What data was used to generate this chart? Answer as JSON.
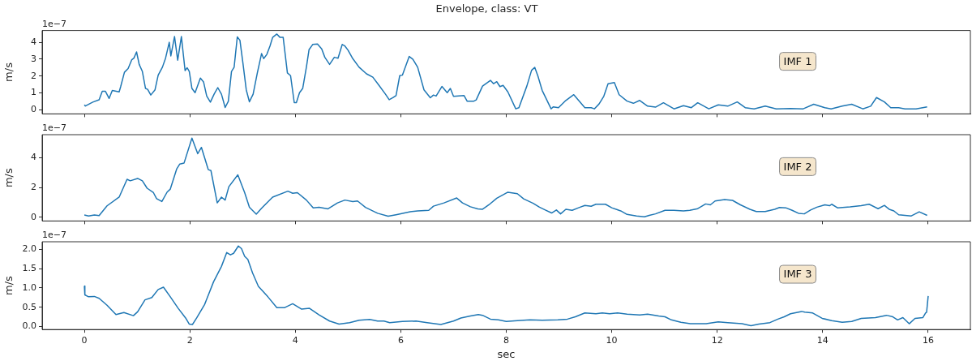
{
  "chart_data": [
    {
      "type": "line",
      "title": "Envelope, class: VT",
      "ylabel": "m/s",
      "annotations": [
        "1e−7",
        "IMF 1"
      ],
      "color": "#1f77b4",
      "tick_labels": "y",
      "xlim": [
        -0.8,
        16.8
      ],
      "xticks": [
        0,
        2,
        4,
        6,
        8,
        10,
        12,
        14,
        16
      ],
      "ylim": [
        -0.25,
        4.7
      ],
      "yticks": [
        0,
        1,
        2,
        3,
        4
      ],
      "x": [
        0,
        0.02,
        0.16,
        0.28,
        0.34,
        0.4,
        0.47,
        0.53,
        0.66,
        0.69,
        0.76,
        0.83,
        0.9,
        0.94,
        0.99,
        1.04,
        1.1,
        1.16,
        1.2,
        1.26,
        1.34,
        1.4,
        1.48,
        1.54,
        1.61,
        1.64,
        1.71,
        1.77,
        1.84,
        1.91,
        1.95,
        1.99,
        2.04,
        2.1,
        2.2,
        2.26,
        2.32,
        2.39,
        2.46,
        2.53,
        2.6,
        2.67,
        2.73,
        2.79,
        2.84,
        2.9,
        2.95,
        3.01,
        3.07,
        3.13,
        3.2,
        3.28,
        3.36,
        3.4,
        3.46,
        3.52,
        3.57,
        3.65,
        3.71,
        3.77,
        3.85,
        3.91,
        3.98,
        4.02,
        4.08,
        4.14,
        4.21,
        4.26,
        4.33,
        4.42,
        4.5,
        4.56,
        4.65,
        4.74,
        4.81,
        4.89,
        4.94,
        5,
        5.09,
        5.21,
        5.35,
        5.47,
        5.59,
        5.71,
        5.78,
        5.85,
        5.91,
        5.98,
        6.03,
        6.16,
        6.23,
        6.32,
        6.44,
        6.56,
        6.62,
        6.67,
        6.78,
        6.88,
        6.94,
        7,
        7.2,
        7.26,
        7.38,
        7.43,
        7.55,
        7.7,
        7.76,
        7.82,
        7.88,
        7.94,
        8.03,
        8.18,
        8.24,
        8.39,
        8.48,
        8.54,
        8.6,
        8.68,
        8.85,
        8.89,
        8.99,
        9.13,
        9.28,
        9.49,
        9.61,
        9.67,
        9.76,
        9.85,
        9.93,
        10.05,
        10.14,
        10.29,
        10.41,
        10.53,
        10.68,
        10.83,
        10.98,
        11.18,
        11.36,
        11.51,
        11.63,
        11.84,
        12.02,
        12.2,
        12.38,
        12.53,
        12.7,
        12.91,
        13.12,
        13.39,
        13.63,
        13.83,
        14.04,
        14.16,
        14.37,
        14.55,
        14.76,
        14.91,
        15.02,
        15.17,
        15.29,
        15.44,
        15.56,
        15.77,
        15.98
      ],
      "values": [
        0.29,
        0.22,
        0.45,
        0.59,
        1.09,
        1.09,
        0.67,
        1.14,
        1.06,
        1.38,
        2.22,
        2.44,
        2.97,
        3.06,
        3.43,
        2.69,
        2.27,
        1.26,
        1.21,
        0.87,
        1.18,
        2.05,
        2.52,
        3.06,
        4.0,
        3.19,
        4.34,
        2.94,
        4.34,
        2.32,
        2.49,
        2.27,
        1.26,
        1.01,
        1.88,
        1.65,
        0.81,
        0.45,
        0.92,
        1.31,
        0.92,
        0.13,
        0.5,
        2.27,
        2.52,
        4.32,
        4.12,
        2.69,
        1.18,
        0.47,
        0.92,
        2.18,
        3.33,
        3.03,
        3.28,
        3.78,
        4.29,
        4.49,
        4.29,
        4.29,
        2.18,
        2.02,
        0.42,
        0.42,
        1.01,
        1.26,
        2.52,
        3.56,
        3.87,
        3.9,
        3.61,
        3.11,
        2.69,
        3.11,
        3.06,
        3.87,
        3.78,
        3.53,
        3.03,
        2.52,
        2.13,
        1.93,
        1.43,
        0.92,
        0.59,
        0.71,
        0.84,
        2.02,
        2.05,
        3.16,
        2.99,
        2.52,
        1.18,
        0.71,
        0.87,
        0.81,
        1.38,
        1.01,
        1.26,
        0.79,
        0.84,
        0.5,
        0.5,
        0.58,
        1.4,
        1.74,
        1.54,
        1.66,
        1.37,
        1.44,
        1.06,
        0.05,
        0.12,
        1.4,
        2.34,
        2.51,
        2.0,
        1.15,
        0.05,
        0.17,
        0.12,
        0.55,
        0.89,
        0.12,
        0.12,
        0.05,
        0.34,
        0.8,
        1.54,
        1.61,
        0.89,
        0.51,
        0.38,
        0.55,
        0.21,
        0.15,
        0.41,
        0.05,
        0.24,
        0.12,
        0.41,
        0.05,
        0.29,
        0.21,
        0.46,
        0.12,
        0.05,
        0.21,
        0.05,
        0.07,
        0.05,
        0.32,
        0.12,
        0.05,
        0.21,
        0.32,
        0.05,
        0.21,
        0.72,
        0.46,
        0.12,
        0.12,
        0.05,
        0.05,
        0.17
      ]
    },
    {
      "type": "line",
      "ylabel": "m/s",
      "annotations": [
        "1e−7",
        "IMF 2"
      ],
      "color": "#1f77b4",
      "tick_labels": "y",
      "xlim": [
        -0.8,
        16.8
      ],
      "xticks": [
        0,
        2,
        4,
        6,
        8,
        10,
        12,
        14,
        16
      ],
      "ylim": [
        -0.26,
        5.56
      ],
      "yticks": [
        0,
        2,
        4
      ],
      "x": [
        0,
        0.08,
        0.19,
        0.28,
        0.43,
        0.66,
        0.81,
        0.87,
        1.01,
        1.1,
        1.19,
        1.31,
        1.37,
        1.47,
        1.57,
        1.63,
        1.75,
        1.81,
        1.89,
        2.04,
        2.15,
        2.22,
        2.35,
        2.4,
        2.52,
        2.6,
        2.67,
        2.74,
        2.91,
        3.04,
        3.13,
        3.26,
        3.36,
        3.57,
        3.86,
        3.95,
        4.04,
        4.21,
        4.34,
        4.45,
        4.62,
        4.8,
        4.94,
        5.09,
        5.18,
        5.33,
        5.56,
        5.76,
        5.91,
        6.18,
        6.32,
        6.53,
        6.62,
        6.82,
        7.06,
        7.17,
        7.32,
        7.46,
        7.55,
        7.67,
        7.82,
        8.03,
        8.21,
        8.33,
        8.51,
        8.63,
        8.74,
        8.86,
        8.95,
        9.03,
        9.13,
        9.25,
        9.37,
        9.49,
        9.61,
        9.7,
        9.88,
        10,
        10.17,
        10.29,
        10.47,
        10.62,
        10.71,
        10.83,
        11.01,
        11.18,
        11.36,
        11.48,
        11.63,
        11.78,
        11.87,
        11.96,
        12.14,
        12.29,
        12.44,
        12.62,
        12.74,
        12.91,
        13.09,
        13.18,
        13.3,
        13.42,
        13.54,
        13.65,
        13.77,
        13.89,
        14.04,
        14.13,
        14.17,
        14.28,
        14.52,
        14.73,
        14.88,
        15.05,
        15.17,
        15.26,
        15.35,
        15.44,
        15.56,
        15.68,
        15.83,
        15.98
      ],
      "values": [
        0.14,
        0.08,
        0.14,
        0.1,
        0.76,
        1.35,
        2.55,
        2.45,
        2.61,
        2.45,
        1.95,
        1.65,
        1.25,
        1.05,
        1.69,
        1.89,
        3.24,
        3.58,
        3.64,
        5.33,
        4.28,
        4.7,
        3.2,
        3.14,
        0.96,
        1.35,
        1.15,
        2.05,
        2.85,
        1.65,
        0.66,
        0.2,
        0.6,
        1.35,
        1.75,
        1.61,
        1.65,
        1.15,
        0.62,
        0.66,
        0.56,
        0.96,
        1.15,
        1.05,
        1.09,
        0.66,
        0.26,
        0.06,
        0.16,
        0.36,
        0.42,
        0.46,
        0.74,
        0.96,
        1.29,
        0.96,
        0.7,
        0.56,
        0.53,
        0.83,
        1.27,
        1.68,
        1.58,
        1.23,
        0.93,
        0.67,
        0.48,
        0.28,
        0.48,
        0.22,
        0.53,
        0.46,
        0.63,
        0.79,
        0.73,
        0.87,
        0.87,
        0.63,
        0.42,
        0.18,
        0.08,
        0.02,
        0.12,
        0.22,
        0.46,
        0.46,
        0.42,
        0.46,
        0.57,
        0.89,
        0.83,
        1.09,
        1.19,
        1.13,
        0.83,
        0.53,
        0.38,
        0.38,
        0.53,
        0.65,
        0.63,
        0.46,
        0.26,
        0.22,
        0.48,
        0.67,
        0.83,
        0.77,
        0.87,
        0.63,
        0.69,
        0.77,
        0.87,
        0.57,
        0.79,
        0.53,
        0.42,
        0.16,
        0.12,
        0.08,
        0.36,
        0.12
      ]
    },
    {
      "type": "line",
      "xlabel": "sec",
      "ylabel": "m/s",
      "annotations": [
        "1e−7",
        "IMF 3"
      ],
      "color": "#1f77b4",
      "xlim": [
        -0.8,
        16.8
      ],
      "xticks": [
        0,
        2,
        4,
        6,
        8,
        10,
        12,
        14,
        16
      ],
      "ylim": [
        -0.08,
        2.2
      ],
      "yticks": [
        {
          "value": 0,
          "label": "0.0"
        },
        0.5,
        {
          "value": 1,
          "label": "1.0"
        },
        1.5,
        {
          "value": 2,
          "label": "2.0"
        }
      ],
      "x": [
        0,
        0.01,
        0.08,
        0.19,
        0.28,
        0.43,
        0.6,
        0.75,
        0.93,
        1.01,
        1.15,
        1.28,
        1.4,
        1.5,
        1.63,
        1.78,
        1.92,
        1.99,
        2.05,
        2.13,
        2.28,
        2.45,
        2.6,
        2.7,
        2.77,
        2.83,
        2.92,
        2.98,
        3.04,
        3.1,
        3.19,
        3.3,
        3.48,
        3.65,
        3.8,
        3.95,
        4.12,
        4.27,
        4.45,
        4.65,
        4.83,
        5.03,
        5.21,
        5.41,
        5.56,
        5.68,
        5.79,
        6.03,
        6.29,
        6.5,
        6.76,
        7,
        7.14,
        7.32,
        7.47,
        7.55,
        7.7,
        7.85,
        8,
        8.21,
        8.45,
        8.68,
        8.98,
        9.16,
        9.31,
        9.49,
        9.7,
        9.82,
        9.96,
        10.11,
        10.29,
        10.53,
        10.68,
        10.89,
        11.01,
        11.13,
        11.31,
        11.49,
        11.79,
        12.02,
        12.2,
        12.47,
        12.64,
        12.79,
        13,
        13.15,
        13.27,
        13.39,
        13.6,
        13.66,
        13.81,
        13.99,
        14.17,
        14.37,
        14.55,
        14.73,
        15,
        15.21,
        15.33,
        15.42,
        15.52,
        15.64,
        15.75,
        15.9,
        15.95,
        15.97,
        16
      ],
      "values": [
        1.05,
        0.82,
        0.77,
        0.78,
        0.73,
        0.55,
        0.31,
        0.36,
        0.28,
        0.38,
        0.69,
        0.75,
        0.96,
        1.02,
        0.77,
        0.47,
        0.22,
        0.06,
        0.05,
        0.22,
        0.57,
        1.16,
        1.56,
        1.92,
        1.86,
        1.9,
        2.09,
        2.02,
        1.82,
        1.74,
        1.39,
        1.04,
        0.77,
        0.49,
        0.49,
        0.59,
        0.45,
        0.47,
        0.3,
        0.14,
        0.06,
        0.1,
        0.16,
        0.18,
        0.14,
        0.14,
        0.1,
        0.13,
        0.14,
        0.1,
        0.05,
        0.14,
        0.22,
        0.27,
        0.31,
        0.29,
        0.19,
        0.17,
        0.13,
        0.15,
        0.17,
        0.16,
        0.17,
        0.19,
        0.25,
        0.35,
        0.33,
        0.35,
        0.33,
        0.35,
        0.32,
        0.3,
        0.32,
        0.27,
        0.25,
        0.17,
        0.11,
        0.07,
        0.07,
        0.12,
        0.1,
        0.07,
        0.02,
        0.06,
        0.1,
        0.19,
        0.25,
        0.33,
        0.39,
        0.37,
        0.35,
        0.21,
        0.15,
        0.11,
        0.13,
        0.21,
        0.23,
        0.29,
        0.25,
        0.17,
        0.23,
        0.07,
        0.21,
        0.23,
        0.35,
        0.37,
        0.79
      ]
    }
  ]
}
